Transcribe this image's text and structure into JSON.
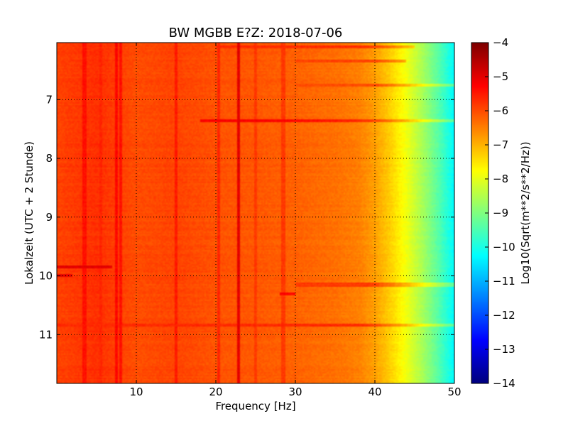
{
  "chart_data": {
    "type": "heatmap",
    "title": "BW MGBB E?Z: 2018-07-06",
    "xlabel": "Frequency [Hz]",
    "ylabel": "Lokalzeit (UTC + 2 Stunde)",
    "xlim": [
      0,
      50
    ],
    "ylim": [
      6.03,
      11.83
    ],
    "y_inverted": true,
    "x_ticks": [
      10,
      20,
      30,
      40,
      50
    ],
    "x_tick_labels": [
      "10",
      "20",
      "30",
      "40",
      "50"
    ],
    "y_ticks": [
      7,
      8,
      9,
      10,
      11
    ],
    "y_tick_labels": [
      "7",
      "8",
      "9",
      "10",
      "11"
    ],
    "grid": true,
    "colormap": "jet",
    "colorbar": {
      "label": "Log10(Sqrt(m**2/s**2/Hz))",
      "min": -14,
      "max": -4,
      "ticks": [
        -4,
        -5,
        -6,
        -7,
        -8,
        -9,
        -10,
        -11,
        -12,
        -13,
        -14
      ],
      "tick_labels": [
        "−4",
        "−5",
        "−6",
        "−7",
        "−8",
        "−9",
        "−10",
        "−11",
        "−12",
        "−13",
        "−14"
      ]
    },
    "frequency_profile": {
      "frequency_hz": [
        0,
        5,
        10,
        15,
        20,
        25,
        30,
        35,
        38,
        40,
        42,
        44,
        46,
        48,
        50
      ],
      "log10_amplitude": [
        -5.9,
        -5.7,
        -6.0,
        -5.9,
        -6.05,
        -6.1,
        -6.2,
        -6.35,
        -6.5,
        -6.8,
        -7.3,
        -7.9,
        -8.6,
        -9.4,
        -10.3
      ]
    },
    "vertical_bands": [
      {
        "frequency_hz": 3.5,
        "log10_amplitude": -5.4
      },
      {
        "frequency_hz": 5.5,
        "log10_amplitude": -5.6
      },
      {
        "frequency_hz": 7.5,
        "log10_amplitude": -5.3
      },
      {
        "frequency_hz": 8.0,
        "log10_amplitude": -5.4
      },
      {
        "frequency_hz": 15.0,
        "log10_amplitude": -5.5
      },
      {
        "frequency_hz": 20.3,
        "log10_amplitude": -5.6
      },
      {
        "frequency_hz": 22.8,
        "log10_amplitude": -5.0
      },
      {
        "frequency_hz": 25.0,
        "log10_amplitude": -5.8
      },
      {
        "frequency_hz": 28.5,
        "log10_amplitude": -5.8
      }
    ],
    "horizontal_bands": [
      {
        "time": 6.1,
        "from_hz": 20,
        "to_hz": 45,
        "log10_amplitude": -5.7
      },
      {
        "time": 6.35,
        "from_hz": 30,
        "to_hz": 44,
        "log10_amplitude": -5.9
      },
      {
        "time": 6.75,
        "from_hz": 30,
        "to_hz": 50,
        "log10_amplitude": -6.0
      },
      {
        "time": 7.35,
        "from_hz": 18,
        "to_hz": 50,
        "log10_amplitude": -5.2
      },
      {
        "time": 9.85,
        "from_hz": 0,
        "to_hz": 7,
        "log10_amplitude": -5.0
      },
      {
        "time": 10.0,
        "from_hz": 0,
        "to_hz": 2,
        "log10_amplitude": -5.0
      },
      {
        "time": 10.15,
        "from_hz": 30,
        "to_hz": 50,
        "log10_amplitude": -5.8
      },
      {
        "time": 10.3,
        "from_hz": 28,
        "to_hz": 30,
        "log10_amplitude": -5.2
      },
      {
        "time": 10.85,
        "from_hz": 0,
        "to_hz": 50,
        "log10_amplitude": -5.6
      }
    ]
  }
}
